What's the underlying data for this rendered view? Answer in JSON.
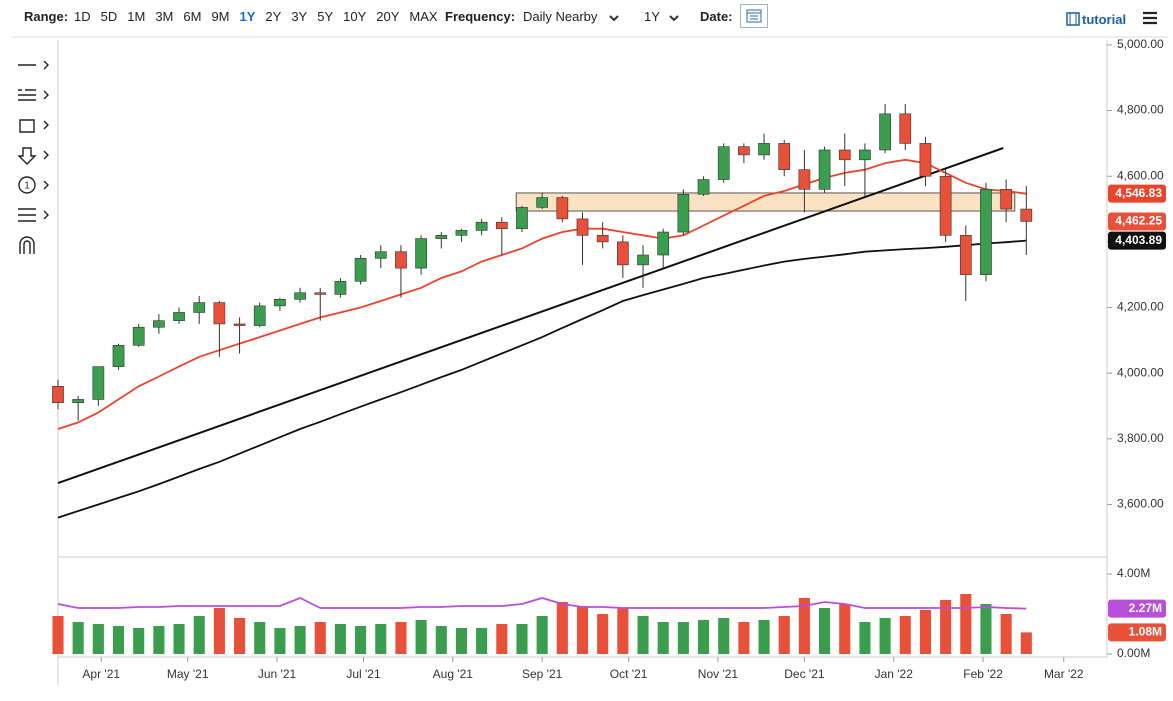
{
  "toolbar": {
    "range_label": "Range:",
    "ranges": [
      "1D",
      "5D",
      "1M",
      "3M",
      "6M",
      "9M",
      "1Y",
      "2Y",
      "3Y",
      "5Y",
      "10Y",
      "20Y",
      "MAX"
    ],
    "active_range": "1Y",
    "frequency_label": "Frequency:",
    "frequency": "Daily Nearby",
    "period": "1Y",
    "date_label": "Date:",
    "tutorial": "tutorial"
  },
  "chart_data": {
    "type": "candlestick",
    "x": [
      0,
      7,
      14,
      21,
      28,
      35,
      42,
      49,
      56,
      63,
      70,
      77,
      84,
      91,
      98,
      105,
      112,
      119,
      126,
      133,
      140,
      147,
      154,
      161,
      168,
      175,
      182,
      189,
      196,
      203,
      210,
      217,
      224,
      231,
      238,
      245,
      252,
      259,
      266,
      273,
      280,
      287,
      294,
      301,
      308,
      315,
      322,
      329,
      336
    ],
    "xlim": [
      0,
      364
    ],
    "xticks": [
      {
        "value": 15,
        "label": "Apr '21"
      },
      {
        "value": 45,
        "label": "May '21"
      },
      {
        "value": 76,
        "label": "Jun '21"
      },
      {
        "value": 106,
        "label": "Jul '21"
      },
      {
        "value": 137,
        "label": "Aug '21"
      },
      {
        "value": 168,
        "label": "Sep '21"
      },
      {
        "value": 198,
        "label": "Oct '21"
      },
      {
        "value": 229,
        "label": "Nov '21"
      },
      {
        "value": 259,
        "label": "Dec '21"
      },
      {
        "value": 290,
        "label": "Jan '22"
      },
      {
        "value": 321,
        "label": "Feb '22"
      },
      {
        "value": 349,
        "label": "Mar '22"
      }
    ],
    "ylim": [
      3440,
      5015
    ],
    "yticks": [
      {
        "value": 3600,
        "label": "3,600.00"
      },
      {
        "value": 3800,
        "label": "3,800.00"
      },
      {
        "value": 4000,
        "label": "4,000.00"
      },
      {
        "value": 4200,
        "label": "4,200.00"
      },
      {
        "value": 4400,
        "label": "4,400.00"
      },
      {
        "value": 4600,
        "label": "4,600.00"
      },
      {
        "value": 4800,
        "label": "4,800.00"
      },
      {
        "value": 5000,
        "label": "5,000.00"
      }
    ],
    "up_color": "#3b9e4f",
    "down_color": "#e8503a",
    "open": [
      3960,
      3910,
      3920,
      4020,
      4085,
      4140,
      4160,
      4185,
      4215,
      4150,
      4145,
      4205,
      4225,
      4245,
      4240,
      4280,
      4350,
      4370,
      4320,
      4410,
      4420,
      4435,
      4460,
      4440,
      4505,
      4535,
      4470,
      4420,
      4400,
      4330,
      4360,
      4430,
      4545,
      4590,
      4690,
      4665,
      4700,
      4620,
      4560,
      4680,
      4650,
      4680,
      4790,
      4700,
      4600,
      4420,
      4300,
      4560,
      4500
    ],
    "high": [
      3980,
      3930,
      4020,
      4090,
      4150,
      4180,
      4200,
      4235,
      4220,
      4170,
      4215,
      4230,
      4260,
      4260,
      4290,
      4360,
      4390,
      4390,
      4420,
      4430,
      4440,
      4470,
      4475,
      4510,
      4550,
      4540,
      4490,
      4460,
      4420,
      4390,
      4440,
      4560,
      4600,
      4700,
      4700,
      4730,
      4710,
      4680,
      4690,
      4730,
      4700,
      4820,
      4820,
      4720,
      4620,
      4450,
      4580,
      4590,
      4570
    ],
    "low": [
      3890,
      3855,
      3900,
      4010,
      4080,
      4120,
      4150,
      4150,
      4050,
      4060,
      4140,
      4190,
      4215,
      4160,
      4230,
      4270,
      4320,
      4230,
      4300,
      4380,
      4400,
      4420,
      4360,
      4430,
      4500,
      4460,
      4330,
      4380,
      4290,
      4260,
      4320,
      4420,
      4540,
      4580,
      4640,
      4650,
      4600,
      4490,
      4550,
      4570,
      4540,
      4670,
      4680,
      4570,
      4400,
      4220,
      4280,
      4460,
      4360
    ],
    "close": [
      3910,
      3920,
      4020,
      4085,
      4140,
      4160,
      4185,
      4215,
      4150,
      4145,
      4205,
      4225,
      4245,
      4240,
      4280,
      4350,
      4370,
      4320,
      4410,
      4420,
      4435,
      4460,
      4440,
      4505,
      4535,
      4470,
      4420,
      4400,
      4330,
      4360,
      4430,
      4545,
      4590,
      4690,
      4665,
      4700,
      4620,
      4560,
      4680,
      4650,
      4680,
      4790,
      4700,
      4600,
      4420,
      4300,
      4560,
      4500,
      4462.25
    ],
    "close_label": "4,462.25",
    "overlays": [
      {
        "color": "#e8452c",
        "values": [
          3830,
          3850,
          3880,
          3920,
          3960,
          3990,
          4020,
          4050,
          4070,
          4090,
          4110,
          4130,
          4150,
          4170,
          4185,
          4200,
          4220,
          4240,
          4260,
          4290,
          4310,
          4340,
          4360,
          4380,
          4410,
          4430,
          4440,
          4440,
          4430,
          4420,
          4410,
          4420,
          4450,
          4480,
          4510,
          4540,
          4555,
          4575,
          4595,
          4610,
          4620,
          4640,
          4650,
          4640,
          4610,
          4580,
          4560,
          4555,
          4546.83
        ],
        "last_label": "4,546.83"
      },
      {
        "color": "#111111",
        "values": [
          3560,
          3580,
          3600,
          3620,
          3640,
          3662,
          3685,
          3708,
          3730,
          3755,
          3780,
          3805,
          3830,
          3852,
          3875,
          3898,
          3920,
          3942,
          3965,
          3988,
          4010,
          4035,
          4060,
          4085,
          4110,
          4138,
          4165,
          4192,
          4220,
          4238,
          4255,
          4272,
          4290,
          4302,
          4315,
          4328,
          4340,
          4348,
          4355,
          4362,
          4370,
          4374,
          4378,
          4381,
          4385,
          4390,
          4395,
          4399,
          4403.89
        ],
        "last_label": "4,403.89"
      }
    ],
    "trendline": {
      "x": [
        0,
        328
      ],
      "values": [
        3665,
        4686
      ],
      "color": "#111111"
    },
    "zone": {
      "xlim": [
        159,
        332
      ],
      "ylim": [
        4494,
        4549
      ],
      "color": "#fbe2c2"
    },
    "volume": {
      "ylim": [
        -0.15,
        4.6
      ],
      "yticks": [
        {
          "value": 0,
          "label": "0.00M"
        },
        {
          "value": 4,
          "label": "4.00M"
        }
      ],
      "values": [
        1.9,
        1.6,
        1.5,
        1.4,
        1.3,
        1.4,
        1.5,
        1.9,
        2.3,
        1.8,
        1.6,
        1.3,
        1.4,
        1.6,
        1.5,
        1.4,
        1.5,
        1.6,
        1.7,
        1.4,
        1.3,
        1.3,
        1.5,
        1.5,
        1.9,
        2.6,
        2.4,
        2.0,
        2.3,
        1.9,
        1.6,
        1.6,
        1.7,
        1.8,
        1.6,
        1.7,
        1.9,
        2.8,
        2.3,
        2.5,
        1.6,
        1.8,
        1.9,
        2.2,
        2.7,
        3.0,
        2.5,
        2.0,
        1.08
      ],
      "last_label": "1.08M",
      "ma": {
        "color": "#b84fd8",
        "values": [
          2.5,
          2.3,
          2.3,
          2.3,
          2.35,
          2.35,
          2.4,
          2.4,
          2.4,
          2.4,
          2.4,
          2.4,
          2.8,
          2.3,
          2.3,
          2.3,
          2.3,
          2.3,
          2.35,
          2.35,
          2.4,
          2.4,
          2.4,
          2.5,
          2.8,
          2.5,
          2.35,
          2.35,
          2.3,
          2.3,
          2.3,
          2.3,
          2.3,
          2.3,
          2.3,
          2.3,
          2.35,
          2.4,
          2.6,
          2.5,
          2.3,
          2.3,
          2.3,
          2.3,
          2.3,
          2.3,
          2.35,
          2.3,
          2.27
        ],
        "last_label": "2.27M"
      }
    }
  }
}
